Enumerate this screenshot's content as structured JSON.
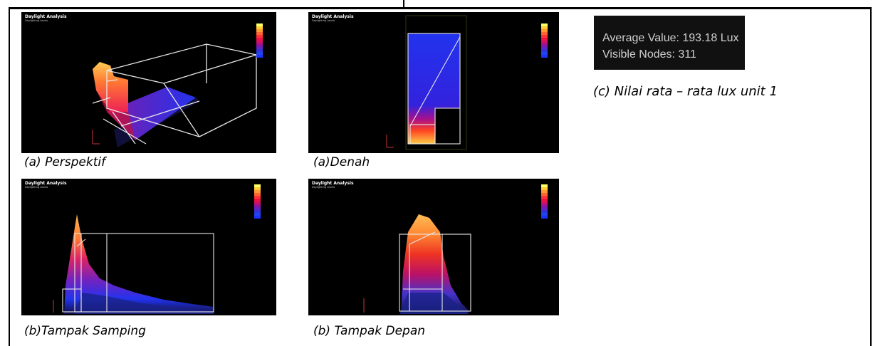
{
  "panels": [
    {
      "id": "perspektif",
      "title": "Daylight Analysis",
      "subtitle": "Daylighting Levels",
      "caption": "(a)  Perspektif"
    },
    {
      "id": "denah",
      "title": "Daylight Analysis",
      "subtitle": "Daylighting Levels",
      "caption": "(a)Denah"
    },
    {
      "id": "tampak-samping",
      "title": "Daylight Analysis",
      "subtitle": "Daylighting Levels",
      "caption": "(b)Tampak Samping"
    },
    {
      "id": "tampak-depan",
      "title": "Daylight Analysis",
      "subtitle": "Daylighting Levels",
      "caption": "(b) Tampak Depan"
    }
  ],
  "stats": {
    "average_value": "Average Value: 193.18 Lux",
    "visible_nodes": "Visible Nodes: 311"
  },
  "stats_caption": "(c) Nilai rata – rata lux unit 1",
  "colors": {
    "legend": [
      "#ffff66",
      "#ffcc33",
      "#ff9933",
      "#ff6633",
      "#ff3333",
      "#ee1144",
      "#cc1166",
      "#991199",
      "#6622bb",
      "#3333dd",
      "#2244ee",
      "#1a33ff"
    ],
    "surface_warm": "#ff9933",
    "surface_cool": "#2233ee"
  }
}
